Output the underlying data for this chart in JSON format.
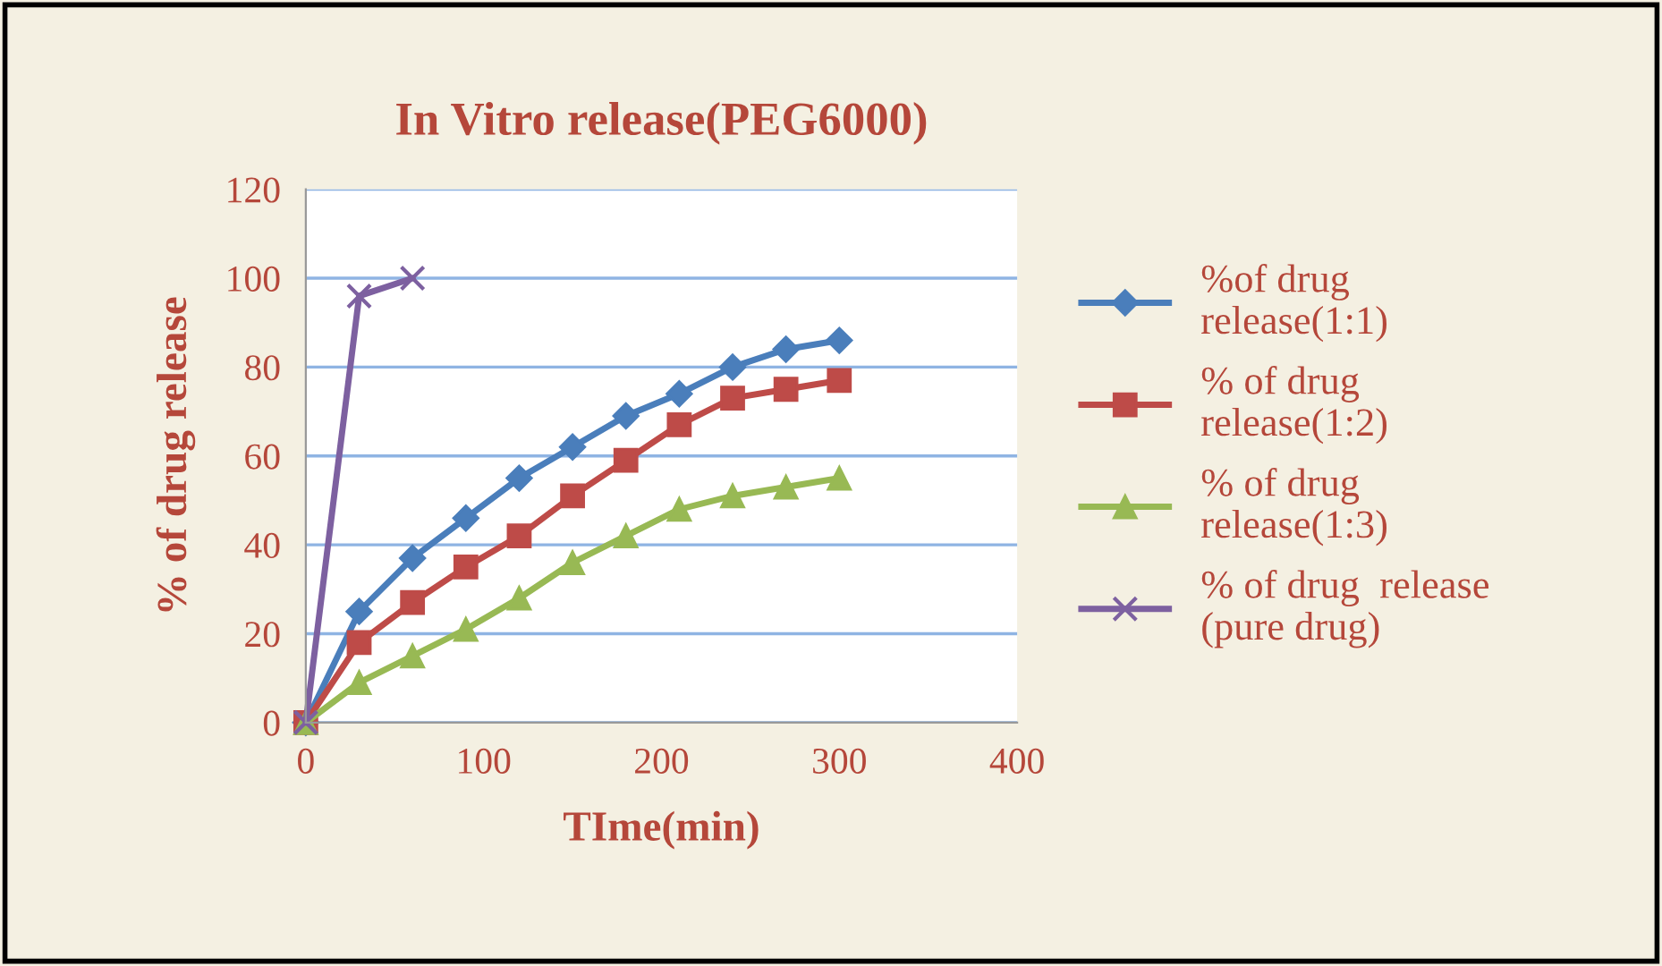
{
  "chart_data": {
    "type": "line",
    "title": "In Vitro release(PEG6000)",
    "xlabel": "TIme(min)",
    "ylabel": "% of drug release",
    "xlim": [
      0,
      400
    ],
    "xticks": [
      0,
      100,
      200,
      300,
      400
    ],
    "ylim": [
      0,
      120
    ],
    "yticks": [
      0,
      20,
      40,
      60,
      80,
      100,
      120
    ],
    "grid": "y",
    "legend": "right",
    "series": [
      {
        "name": "%of drug\nrelease(1:1)",
        "color": "#4a7ebb",
        "marker": "diamond",
        "x": [
          0,
          30,
          60,
          90,
          120,
          150,
          180,
          210,
          240,
          270,
          300
        ],
        "values": [
          0,
          25,
          37,
          46,
          55,
          62,
          69,
          74,
          80,
          84,
          86
        ]
      },
      {
        "name": "% of drug\nrelease(1:2)",
        "color": "#be4b48",
        "marker": "square",
        "x": [
          0,
          30,
          60,
          90,
          120,
          150,
          180,
          210,
          240,
          270,
          300
        ],
        "values": [
          0,
          18,
          27,
          35,
          42,
          51,
          59,
          67,
          73,
          75,
          77
        ]
      },
      {
        "name": "% of drug\nrelease(1:3)",
        "color": "#98b954",
        "marker": "triangle",
        "x": [
          0,
          30,
          60,
          90,
          120,
          150,
          180,
          210,
          240,
          270,
          300
        ],
        "values": [
          0,
          9,
          15,
          21,
          28,
          36,
          42,
          48,
          51,
          53,
          55
        ]
      },
      {
        "name": "% of drug  release\n(pure drug)",
        "color": "#7d60a0",
        "marker": "cross",
        "x": [
          0,
          30,
          60
        ],
        "values": [
          0,
          96,
          100
        ]
      }
    ]
  }
}
